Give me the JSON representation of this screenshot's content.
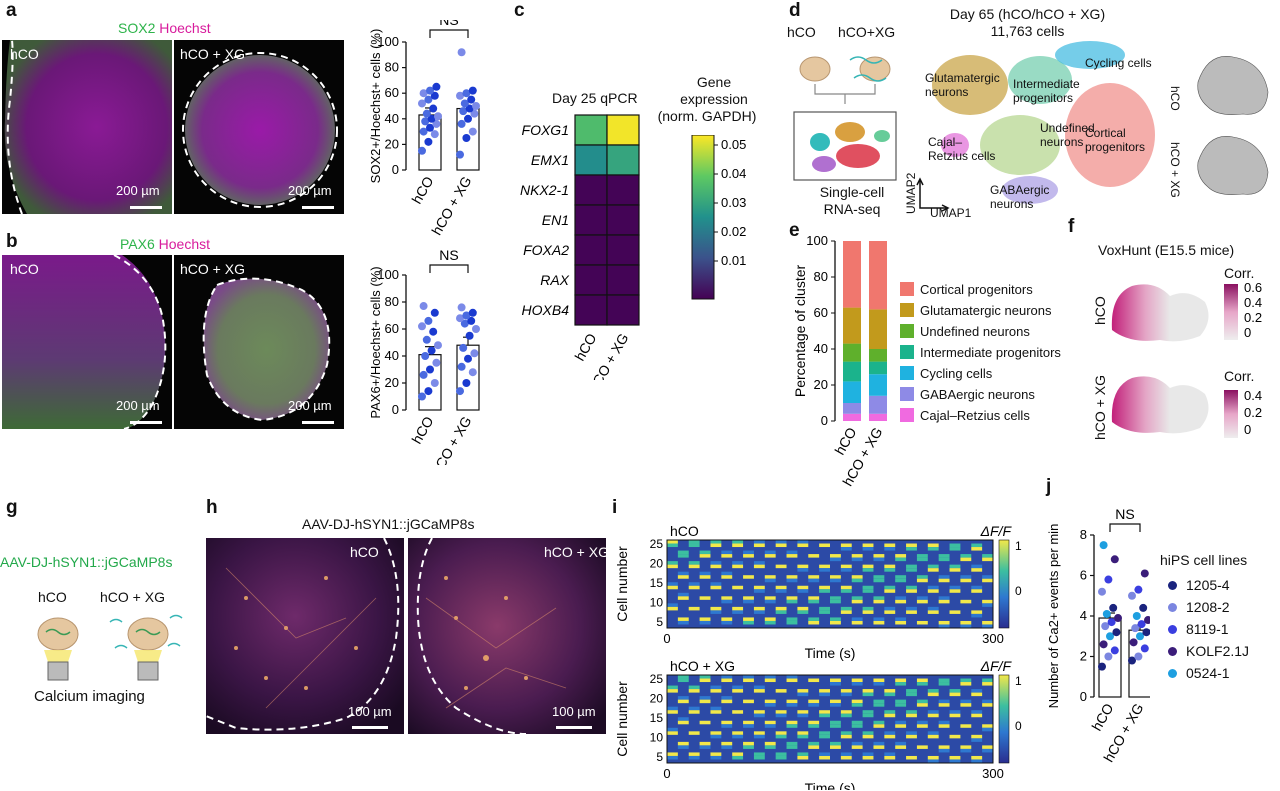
{
  "panels": {
    "a": {
      "label": "a",
      "stain1": "SOX2",
      "stain2": "Hoechst",
      "img_labels": [
        "hCO",
        "hCO + XG"
      ],
      "scale": "200 µm",
      "ylabel": "SOX2+/Hoechst+ cells (%)",
      "sig": "NS",
      "xticks": [
        "hCO",
        "hCO + XG"
      ],
      "yticks": [
        "0",
        "20",
        "40",
        "60",
        "80",
        "100"
      ]
    },
    "b": {
      "label": "b",
      "stain1": "PAX6",
      "stain2": "Hoechst",
      "img_labels": [
        "hCO",
        "hCO + XG"
      ],
      "scale": "200 µm",
      "ylabel": "PAX6+/Hoechst+ cells (%)",
      "sig": "NS",
      "xticks": [
        "hCO",
        "hCO + XG"
      ],
      "yticks": [
        "0",
        "20",
        "40",
        "60",
        "80",
        "100"
      ]
    },
    "c": {
      "label": "c",
      "title": "Day 25 qPCR",
      "genes": [
        "FOXG1",
        "EMX1",
        "NKX2-1",
        "EN1",
        "FOXA2",
        "RAX",
        "HOXB4"
      ],
      "cols": [
        "hCO",
        "hCO + XG"
      ],
      "cbar_title": [
        "Gene",
        "expression",
        "(norm. GAPDH)"
      ],
      "cbar_ticks": [
        "0.05",
        "0.04",
        "0.03",
        "0.02",
        "0.01"
      ]
    },
    "d": {
      "label": "d",
      "left_labels": [
        "hCO",
        "hCO+XG"
      ],
      "seq": [
        "Single-cell",
        "RNA-seq"
      ],
      "title": [
        "Day 65 (hCO/hCO + XG)",
        "11,763 cells"
      ],
      "clusters": [
        "Glutamatergic neurons",
        "Intermediate progenitors",
        "Cycling cells",
        "Cajal–Retzius cells",
        "Undefined neurons",
        "Cortical progenitors",
        "GABAergic neurons"
      ],
      "axes": [
        "UMAP2",
        "UMAP1"
      ],
      "side": [
        "hCO",
        "hCO + XG"
      ]
    },
    "e": {
      "label": "e",
      "ylabel": "Percentage of cluster",
      "yticks": [
        "0",
        "20",
        "40",
        "60",
        "80",
        "100"
      ],
      "xticks": [
        "hCO",
        "hCO + XG"
      ],
      "legend": [
        "Cortical progenitors",
        "Glutamatergic neurons",
        "Undefined neurons",
        "Intermediate progenitors",
        "Cycling cells",
        "GABAergic neurons",
        "Cajal–Retzius cells"
      ]
    },
    "f": {
      "label": "f",
      "title": "VoxHunt (E15.5 mice)",
      "rows": [
        "hCO",
        "hCO + XG"
      ],
      "cbar_title": "Corr.",
      "ticks1": [
        "0.6",
        "0.4",
        "0.2",
        "0"
      ],
      "ticks2": [
        "0.4",
        "0.2",
        "0"
      ]
    },
    "g": {
      "label": "g",
      "virus": "AAV-DJ-hSYN1::jGCaMP8s",
      "conds": [
        "hCO",
        "hCO + XG"
      ],
      "caption": "Calcium imaging"
    },
    "h": {
      "label": "h",
      "title": "AAV-DJ-hSYN1::jGCaMP8s",
      "img_labels": [
        "hCO",
        "hCO + XG"
      ],
      "scale": "100 µm"
    },
    "i": {
      "label": "i",
      "rows": [
        "hCO",
        "hCO + XG"
      ],
      "ylabel": "Cell number",
      "xlabel": "Time (s)",
      "yticks": [
        "25",
        "20",
        "15",
        "10",
        "5"
      ],
      "xticks": [
        "0",
        "300"
      ],
      "cbar_title": "ΔF/F",
      "cbar_ticks": [
        "1",
        "0"
      ]
    },
    "j": {
      "label": "j",
      "sig": "NS",
      "ylabel": "Number of Ca2+ events per min",
      "yticks": [
        "0",
        "2",
        "4",
        "6",
        "8"
      ],
      "xticks": [
        "hCO",
        "hCO + XG"
      ],
      "legend_title": "hiPS cell lines",
      "legend": [
        "1205-4",
        "1208-2",
        "8119-1",
        "KOLF2.1J",
        "0524-1"
      ]
    }
  },
  "colors": {
    "green": "#2db34a",
    "magenta": "#d81b9c",
    "dot_blue": "#1f3fd0",
    "lines": [
      "#1a237e",
      "#7b86e0",
      "#3a3ee0",
      "#3b1d7a",
      "#1e9fe0"
    ]
  },
  "chart_data": [
    {
      "type": "bar",
      "panel": "a",
      "categories": [
        "hCO",
        "hCO + XG"
      ],
      "values": [
        43,
        48
      ],
      "ylabel": "SOX2+/Hoechst+ cells (%)",
      "ylim": [
        0,
        100
      ],
      "points": [
        [
          15,
          22,
          28,
          30,
          33,
          36,
          38,
          40,
          42,
          44,
          48,
          52,
          55,
          58,
          60,
          62,
          65
        ],
        [
          12,
          25,
          30,
          36,
          40,
          44,
          46,
          48,
          50,
          52,
          55,
          58,
          60,
          62,
          92
        ]
      ]
    },
    {
      "type": "bar",
      "panel": "b",
      "categories": [
        "hCO",
        "hCO + XG"
      ],
      "values": [
        41,
        48
      ],
      "ylabel": "PAX6+/Hoechst+ cells (%)",
      "ylim": [
        0,
        100
      ],
      "points": [
        [
          10,
          14,
          20,
          26,
          30,
          35,
          40,
          44,
          48,
          52,
          58,
          62,
          66,
          72,
          77
        ],
        [
          14,
          20,
          28,
          32,
          38,
          42,
          46,
          55,
          60,
          64,
          66,
          68,
          70,
          72,
          76
        ]
      ]
    },
    {
      "type": "heatmap",
      "panel": "c",
      "rows": [
        "FOXG1",
        "EMX1",
        "NKX2-1",
        "EN1",
        "FOXA2",
        "RAX",
        "HOXB4"
      ],
      "cols": [
        "hCO",
        "hCO + XG"
      ],
      "values": [
        [
          0.04,
          0.057
        ],
        [
          0.028,
          0.034
        ],
        [
          0.0005,
          0.0005
        ],
        [
          0.0005,
          0.0005
        ],
        [
          0.0005,
          0.0005
        ],
        [
          0.0005,
          0.0005
        ],
        [
          0.0005,
          0.0005
        ]
      ]
    },
    {
      "type": "bar",
      "panel": "e",
      "stacked": true,
      "categories": [
        "hCO",
        "hCO + XG"
      ],
      "series": [
        {
          "name": "Cajal–Retzius cells",
          "values": [
            4,
            4
          ]
        },
        {
          "name": "GABAergic neurons",
          "values": [
            6,
            10
          ]
        },
        {
          "name": "Cycling cells",
          "values": [
            12,
            12
          ]
        },
        {
          "name": "Intermediate progenitors",
          "values": [
            11,
            7
          ]
        },
        {
          "name": "Undefined neurons",
          "values": [
            10,
            7
          ]
        },
        {
          "name": "Glutamatergic neurons",
          "values": [
            20,
            22
          ]
        },
        {
          "name": "Cortical progenitors",
          "values": [
            37,
            38
          ]
        }
      ],
      "ylabel": "Percentage of cluster",
      "ylim": [
        0,
        100
      ]
    },
    {
      "type": "bar",
      "panel": "j",
      "categories": [
        "hCO",
        "hCO + XG"
      ],
      "values": [
        3.9,
        3.3
      ],
      "ylabel": "Number of Ca2+ events per min",
      "ylim": [
        0,
        8
      ],
      "points": [
        [
          1.5,
          2.0,
          2.3,
          2.6,
          3.0,
          3.2,
          3.5,
          3.7,
          3.9,
          4.1,
          4.4,
          5.2,
          5.8,
          6.8,
          7.5
        ],
        [
          1.8,
          2.0,
          2.4,
          2.7,
          3.0,
          3.2,
          3.4,
          3.6,
          3.8,
          4.0,
          4.4,
          5.0,
          5.3,
          6.1
        ]
      ]
    }
  ]
}
